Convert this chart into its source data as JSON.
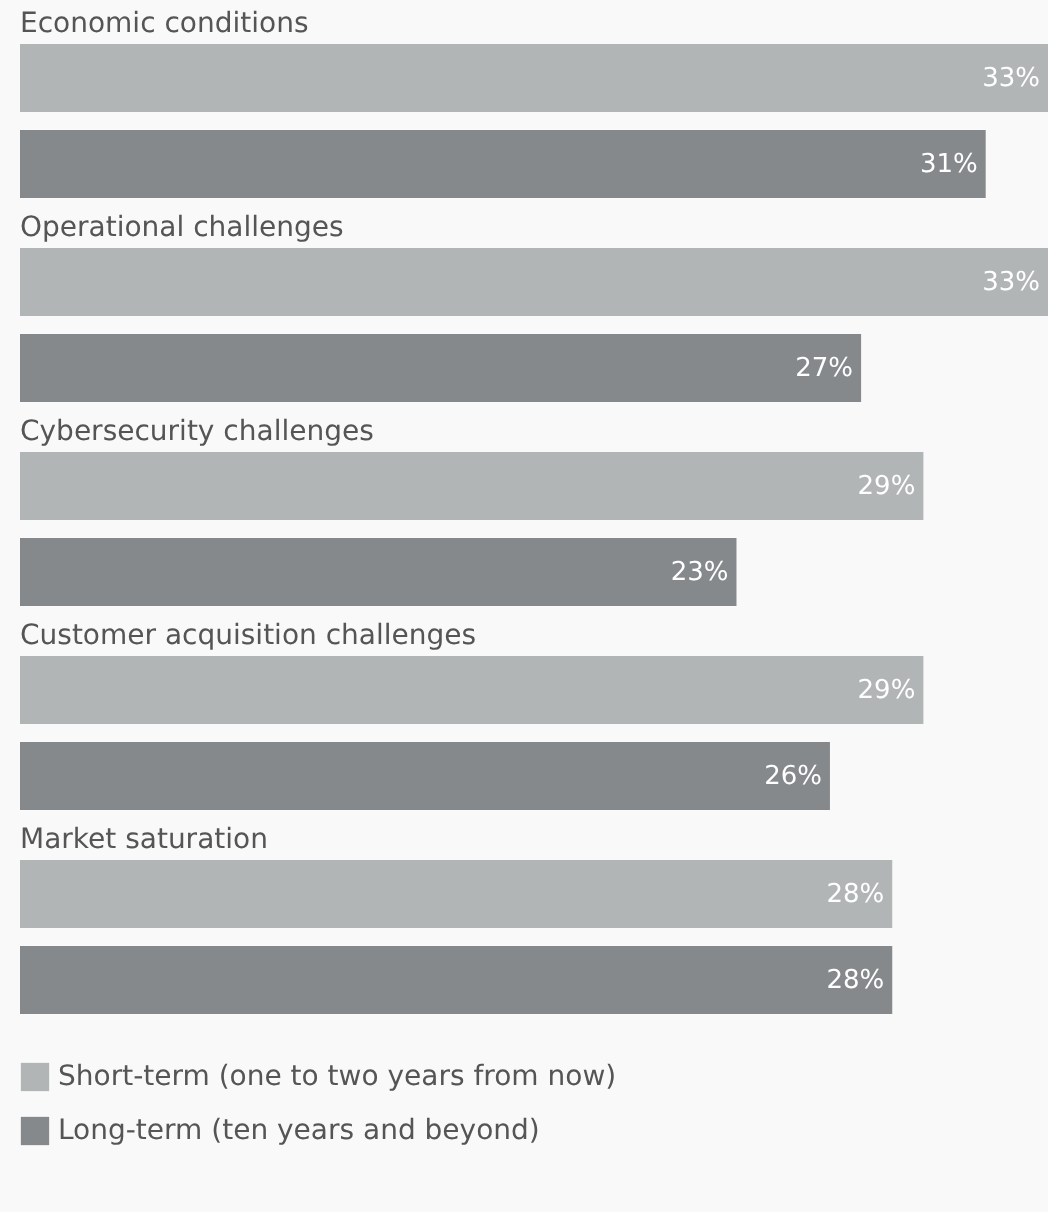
{
  "chart_data": {
    "type": "bar",
    "orientation": "horizontal",
    "categories": [
      "Economic conditions",
      "Operational challenges",
      "Cybersecurity challenges",
      "Customer acquisition challenges",
      "Market saturation"
    ],
    "series": [
      {
        "name": "Short-term (one to two years from now)",
        "color": "#b2b5b6",
        "values": [
          33,
          33,
          29,
          29,
          28
        ],
        "value_labels": [
          "33%",
          "33%",
          "29%",
          "29%",
          "28%"
        ]
      },
      {
        "name": "Long-term (ten years and beyond)",
        "color": "#86898c",
        "values": [
          31,
          27,
          23,
          26,
          28
        ],
        "value_labels": [
          "31%",
          "27%",
          "23%",
          "26%",
          "28%"
        ]
      }
    ],
    "legend": "bottom"
  }
}
